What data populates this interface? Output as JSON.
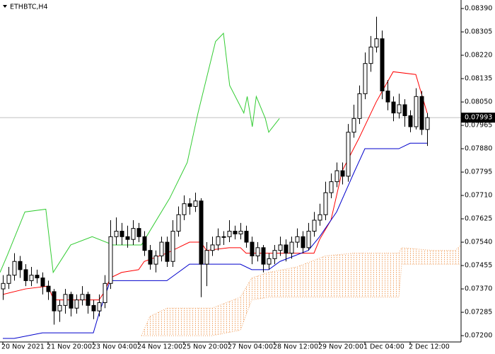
{
  "chart_data": {
    "type": "candlestick",
    "title": "ETHBTC,H4",
    "ohlc": [
      [
        0.0737,
        0.0742,
        0.0733,
        0.0739
      ],
      [
        0.0739,
        0.0745,
        0.0737,
        0.0742
      ],
      [
        0.0742,
        0.075,
        0.074,
        0.0747
      ],
      [
        0.0747,
        0.0749,
        0.0741,
        0.0744
      ],
      [
        0.0744,
        0.0746,
        0.0738,
        0.074
      ],
      [
        0.074,
        0.0745,
        0.0738,
        0.0742
      ],
      [
        0.0742,
        0.0744,
        0.0739,
        0.0741
      ],
      [
        0.0741,
        0.0743,
        0.0735,
        0.0738
      ],
      [
        0.0738,
        0.074,
        0.0733,
        0.0736
      ],
      [
        0.0736,
        0.0737,
        0.0724,
        0.0729
      ],
      [
        0.0729,
        0.0733,
        0.0725,
        0.0731
      ],
      [
        0.0731,
        0.0737,
        0.0728,
        0.0735
      ],
      [
        0.0735,
        0.0736,
        0.0727,
        0.073
      ],
      [
        0.073,
        0.0735,
        0.0728,
        0.0733
      ],
      [
        0.0733,
        0.0738,
        0.0731,
        0.0735
      ],
      [
        0.0735,
        0.0736,
        0.0728,
        0.0731
      ],
      [
        0.0731,
        0.0733,
        0.0726,
        0.0729
      ],
      [
        0.0729,
        0.0735,
        0.0727,
        0.0732
      ],
      [
        0.0732,
        0.0742,
        0.073,
        0.0739
      ],
      [
        0.0739,
        0.0762,
        0.0737,
        0.0756
      ],
      [
        0.0756,
        0.0763,
        0.0753,
        0.0758
      ],
      [
        0.0758,
        0.0761,
        0.0753,
        0.0756
      ],
      [
        0.0756,
        0.076,
        0.0752,
        0.0755
      ],
      [
        0.0755,
        0.0762,
        0.0753,
        0.0759
      ],
      [
        0.0759,
        0.0761,
        0.0754,
        0.0756
      ],
      [
        0.0756,
        0.0758,
        0.0749,
        0.0751
      ],
      [
        0.0751,
        0.0753,
        0.0744,
        0.0746
      ],
      [
        0.0746,
        0.0751,
        0.0743,
        0.0749
      ],
      [
        0.0749,
        0.0756,
        0.0747,
        0.0754
      ],
      [
        0.0754,
        0.0756,
        0.0745,
        0.0747
      ],
      [
        0.0747,
        0.0762,
        0.0745,
        0.0758
      ],
      [
        0.0758,
        0.0767,
        0.0756,
        0.0764
      ],
      [
        0.0764,
        0.0771,
        0.0762,
        0.0768
      ],
      [
        0.0768,
        0.077,
        0.0764,
        0.0767
      ],
      [
        0.0767,
        0.0772,
        0.0765,
        0.0769
      ],
      [
        0.0769,
        0.077,
        0.0734,
        0.0746
      ],
      [
        0.0746,
        0.0754,
        0.0738,
        0.0751
      ],
      [
        0.0751,
        0.0756,
        0.0749,
        0.0753
      ],
      [
        0.0753,
        0.0759,
        0.0751,
        0.0756
      ],
      [
        0.0756,
        0.0758,
        0.0753,
        0.0756
      ],
      [
        0.0756,
        0.0762,
        0.0754,
        0.0758
      ],
      [
        0.0758,
        0.076,
        0.0755,
        0.0757
      ],
      [
        0.0757,
        0.0761,
        0.0755,
        0.0758
      ],
      [
        0.0758,
        0.076,
        0.0752,
        0.0754
      ],
      [
        0.0754,
        0.0756,
        0.0746,
        0.0749
      ],
      [
        0.0749,
        0.0754,
        0.0747,
        0.0752
      ],
      [
        0.0752,
        0.0753,
        0.0743,
        0.0746
      ],
      [
        0.0746,
        0.075,
        0.0744,
        0.0748
      ],
      [
        0.0748,
        0.0753,
        0.0746,
        0.0751
      ],
      [
        0.0751,
        0.0756,
        0.0749,
        0.0753
      ],
      [
        0.0753,
        0.0755,
        0.0747,
        0.075
      ],
      [
        0.075,
        0.0756,
        0.0748,
        0.0754
      ],
      [
        0.0754,
        0.0759,
        0.0752,
        0.0756
      ],
      [
        0.0756,
        0.0758,
        0.075,
        0.0752
      ],
      [
        0.0752,
        0.0761,
        0.0751,
        0.0758
      ],
      [
        0.0758,
        0.0765,
        0.0756,
        0.0762
      ],
      [
        0.0762,
        0.0768,
        0.076,
        0.0764
      ],
      [
        0.0764,
        0.0776,
        0.0762,
        0.0772
      ],
      [
        0.0772,
        0.0779,
        0.077,
        0.0776
      ],
      [
        0.0776,
        0.0783,
        0.0774,
        0.078
      ],
      [
        0.078,
        0.0783,
        0.0775,
        0.0778
      ],
      [
        0.0778,
        0.0797,
        0.0776,
        0.0794
      ],
      [
        0.0794,
        0.0804,
        0.0792,
        0.0799
      ],
      [
        0.0799,
        0.0811,
        0.0797,
        0.0808
      ],
      [
        0.0808,
        0.0823,
        0.0806,
        0.0819
      ],
      [
        0.0819,
        0.0829,
        0.0816,
        0.0825
      ],
      [
        0.0825,
        0.0836,
        0.0823,
        0.0828
      ],
      [
        0.0828,
        0.0831,
        0.0806,
        0.0809
      ],
      [
        0.0809,
        0.0813,
        0.0802,
        0.0805
      ],
      [
        0.0805,
        0.0807,
        0.0798,
        0.0801
      ],
      [
        0.0801,
        0.0808,
        0.0799,
        0.0804
      ],
      [
        0.0804,
        0.0806,
        0.0796,
        0.08
      ],
      [
        0.08,
        0.0802,
        0.0794,
        0.0796
      ],
      [
        0.0796,
        0.081,
        0.0795,
        0.0807
      ],
      [
        0.0807,
        0.0809,
        0.0793,
        0.0795
      ],
      [
        0.0795,
        0.0801,
        0.0789,
        0.07993
      ]
    ],
    "up_color": "#ffffff",
    "down_color": "#000000",
    "xlim": [
      -0.5,
      81
    ],
    "ylim": [
      0.07177,
      0.08421
    ],
    "yticks": [
      {
        "value": 0.0839,
        "label": "0.08390"
      },
      0.08305,
      {
        "value": 0.0822,
        "label": "0.08220"
      },
      0.08135,
      {
        "value": 0.0805,
        "label": "0.08050"
      },
      0.07965,
      {
        "value": 0.0788,
        "label": "0.07880"
      },
      0.07795,
      {
        "value": 0.0771,
        "label": "0.07710"
      },
      0.07625,
      {
        "value": 0.0754,
        "label": "0.07540"
      },
      0.07455,
      {
        "value": 0.0737,
        "label": "0.07370"
      },
      0.07285,
      {
        "value": 0.072,
        "label": "0.07200"
      }
    ],
    "xticks": [
      {
        "value": 0,
        "label": "20 Nov 2021"
      },
      {
        "value": 8,
        "label": "21 Nov 20:00"
      },
      {
        "value": 16,
        "label": "23 Nov 04:00"
      },
      {
        "value": 24,
        "label": "24 Nov 12:00"
      },
      {
        "value": 32,
        "label": "25 Nov 20:00"
      },
      {
        "value": 40,
        "label": "27 Nov 04:00"
      },
      {
        "value": 48,
        "label": "28 Nov 12:00"
      },
      {
        "value": 56,
        "label": "29 Nov 20:00"
      },
      {
        "value": 64,
        "label": "1 Dec 04:00"
      },
      {
        "value": 72,
        "label": "2 Dec 12:00"
      }
    ],
    "last_price": 0.07993,
    "lines": [
      {
        "color": "#ff0000",
        "x": [
          0,
          4,
          8,
          9,
          12,
          17,
          18,
          19,
          21,
          24,
          25,
          29,
          33,
          35,
          36,
          40,
          42,
          43,
          45,
          55,
          56,
          58,
          60,
          63,
          66,
          69,
          73,
          74,
          75
        ],
        "values": [
          0.0735,
          0.0737,
          0.0738,
          0.0733,
          0.0733,
          0.0733,
          0.0736,
          0.0741,
          0.0743,
          0.0744,
          0.0747,
          0.075,
          0.0754,
          0.0754,
          0.0751,
          0.0752,
          0.0752,
          0.075,
          0.075,
          0.075,
          0.0755,
          0.0762,
          0.078,
          0.0792,
          0.0805,
          0.0816,
          0.0815,
          0.0808,
          0.0801
        ]
      },
      {
        "color": "#0000cc",
        "x": [
          0,
          2,
          7,
          16,
          17,
          19,
          29,
          31,
          33,
          42,
          44,
          47,
          49,
          54,
          56,
          59,
          62,
          64,
          70,
          72,
          75
        ],
        "values": [
          0.0719,
          0.0719,
          0.0721,
          0.0721,
          0.0728,
          0.074,
          0.074,
          0.0743,
          0.0746,
          0.0746,
          0.0744,
          0.0744,
          0.0747,
          0.0751,
          0.0756,
          0.0765,
          0.0779,
          0.0788,
          0.0788,
          0.079,
          0.079
        ]
      },
      {
        "color": "#33cc33",
        "x": [
          -0.5,
          0.75,
          3.9,
          7.6,
          8.9,
          12,
          15.8,
          19.5,
          24.5,
          29.5,
          32.6,
          34.5,
          37.6,
          39,
          40.1,
          42.6,
          43.2,
          44.1,
          44.8,
          46.4,
          47,
          48.9
        ],
        "values": [
          0.0743,
          0.0749,
          0.0765,
          0.0766,
          0.0743,
          0.0753,
          0.0756,
          0.0753,
          0.0753,
          0.077,
          0.0783,
          0.0801,
          0.0827,
          0.083,
          0.0811,
          0.0801,
          0.0807,
          0.0796,
          0.0807,
          0.0799,
          0.0794,
          0.0799
        ]
      }
    ],
    "cloud": {
      "color": "#f0a060",
      "x": [
        24.5,
        26,
        29,
        37,
        42,
        44,
        47,
        52,
        57,
        62,
        70,
        70.5,
        76,
        80,
        81
      ],
      "upper": [
        0.072,
        0.0727,
        0.073,
        0.073,
        0.0734,
        0.0741,
        0.0743,
        0.0745,
        0.0749,
        0.075,
        0.075,
        0.0752,
        0.0751,
        0.0751,
        0.0753
      ],
      "lower": [
        0.072,
        0.072,
        0.072,
        0.072,
        0.0722,
        0.0733,
        0.0734,
        0.0734,
        0.0734,
        0.0734,
        0.0734,
        0.0746,
        0.0746,
        0.0746,
        0.0746
      ]
    }
  }
}
